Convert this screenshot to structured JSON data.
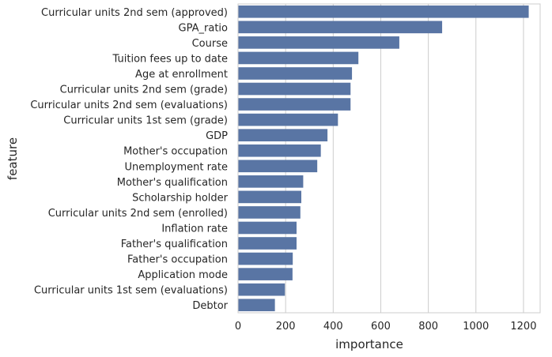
{
  "chart_data": {
    "type": "bar",
    "orientation": "horizontal",
    "categories": [
      "Curricular units 2nd sem (approved)",
      "GPA_ratio",
      "Course",
      "Tuition fees up to date",
      "Age at enrollment",
      "Curricular units 2nd sem (grade)",
      "Curricular units 2nd sem (evaluations)",
      "Curricular units 1st sem (grade)",
      "GDP",
      "Mother's occupation",
      "Unemployment rate",
      "Mother's qualification",
      "Scholarship holder",
      "Curricular units 2nd sem (enrolled)",
      "Inflation rate",
      "Father's qualification",
      "Father's occupation",
      "Application mode",
      "Curricular units 1st sem (evaluations)",
      "Debtor"
    ],
    "values": [
      1222,
      858,
      678,
      506,
      479,
      473,
      473,
      420,
      376,
      348,
      333,
      274,
      266,
      262,
      246,
      246,
      230,
      229,
      197,
      155
    ],
    "xlabel": "importance",
    "ylabel": "feature",
    "xlim": [
      0,
      1270
    ],
    "xticks": [
      0,
      200,
      400,
      600,
      800,
      1000,
      1200
    ],
    "grid": "vertical",
    "bar_color": "#5975a4"
  }
}
